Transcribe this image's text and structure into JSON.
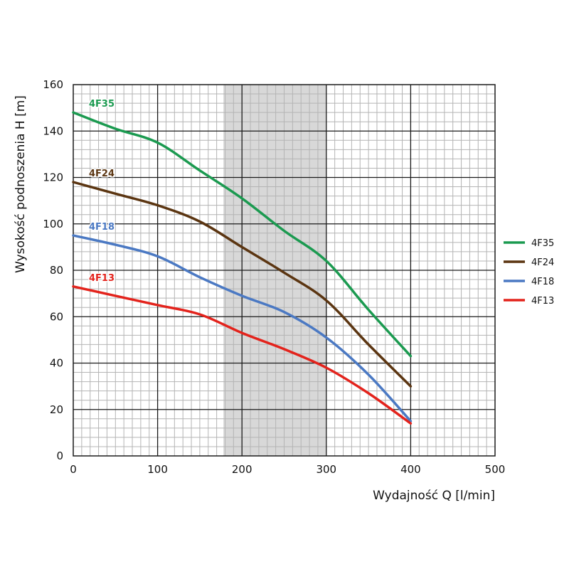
{
  "chart_data": {
    "type": "line",
    "xlabel": "Wydajność Q [l/min]",
    "ylabel": "Wysokość podnoszenia H [m]",
    "xlim": [
      0,
      500
    ],
    "ylim": [
      0,
      160
    ],
    "x_ticks": [
      "0",
      "100",
      "200",
      "300",
      "400",
      "500"
    ],
    "y_ticks": [
      "0",
      "20",
      "40",
      "60",
      "80",
      "100",
      "120",
      "140",
      "160"
    ],
    "grid": true,
    "legend_position": "right",
    "highlight_band": {
      "x_from": 178,
      "x_to": 300,
      "color": "#d8d8d8"
    },
    "series": [
      {
        "name": "4F35",
        "color": "#1b9a50",
        "x": [
          0,
          50,
          100,
          150,
          200,
          250,
          300,
          350,
          400
        ],
        "y": [
          148,
          141,
          135,
          123,
          111,
          97,
          84,
          63,
          43
        ]
      },
      {
        "name": "4F24",
        "color": "#5b3511",
        "x": [
          0,
          50,
          100,
          150,
          200,
          250,
          300,
          350,
          400
        ],
        "y": [
          118,
          113,
          108,
          101,
          90,
          79,
          67,
          48,
          30
        ]
      },
      {
        "name": "4F18",
        "color": "#4b79c3",
        "x": [
          0,
          50,
          100,
          150,
          200,
          250,
          300,
          350,
          400
        ],
        "y": [
          95,
          91,
          86,
          77,
          69,
          62,
          51,
          35,
          15
        ]
      },
      {
        "name": "4F13",
        "color": "#e3231c",
        "x": [
          0,
          50,
          100,
          150,
          200,
          250,
          300,
          350,
          400
        ],
        "y": [
          73,
          69,
          65,
          61,
          53,
          46,
          38,
          27,
          14
        ]
      }
    ]
  }
}
